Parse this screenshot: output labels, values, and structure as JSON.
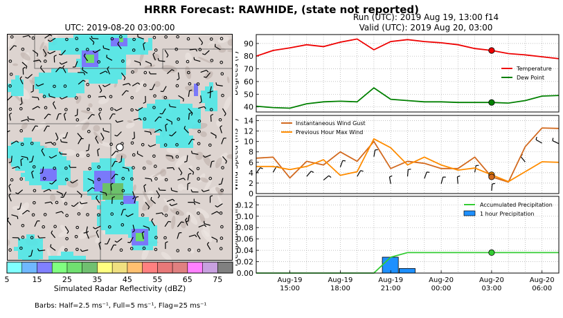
{
  "title": "HRRR Forecast: RAWHIDE, (state not reported)",
  "map": {
    "title": "UTC: 2019-08-20 03:00:00",
    "colorbar": {
      "label": "Simulated Radar Reflectivity (dBZ)",
      "ticks": [
        "5",
        "15",
        "25",
        "35",
        "45",
        "55",
        "65",
        "75"
      ],
      "colors": [
        "#80ffff",
        "#6fb8ff",
        "#8080ff",
        "#80ff80",
        "#70e070",
        "#70c070",
        "#ffff80",
        "#f0e080",
        "#ffc070",
        "#ff8080",
        "#e87878",
        "#e08080",
        "#ff80ff",
        "#c8a0e0",
        "#808080"
      ]
    },
    "barbs_note": "Barbs: Half=2.5 ms⁻¹, Full=5 ms⁻¹, Flag=25 ms⁻¹"
  },
  "run_line": "Run (UTC): 2019 Aug 19, 13:00 f14",
  "valid_line": "Valid (UTC): 2019 Aug 20, 03:00",
  "chart_data": [
    {
      "type": "line",
      "ylabel": "Degrees (F)",
      "ylim": [
        36,
        97
      ],
      "yticks": [
        40,
        50,
        60,
        70,
        80,
        90
      ],
      "grid": true,
      "legend": "right",
      "x": [
        "2019-08-19 13:00",
        "2019-08-19 14:00",
        "2019-08-19 15:00",
        "2019-08-19 16:00",
        "2019-08-19 17:00",
        "2019-08-19 18:00",
        "2019-08-19 19:00",
        "2019-08-19 20:00",
        "2019-08-19 21:00",
        "2019-08-19 22:00",
        "2019-08-19 23:00",
        "2019-08-20 00:00",
        "2019-08-20 01:00",
        "2019-08-20 02:00",
        "2019-08-20 03:00",
        "2019-08-20 04:00",
        "2019-08-20 05:00",
        "2019-08-20 06:00",
        "2019-08-20 07:00"
      ],
      "series": [
        {
          "name": "Temperature",
          "color": "#ee0000",
          "values": [
            80,
            84.5,
            86.5,
            89,
            87.5,
            91,
            93.5,
            85,
            91.5,
            93,
            91.5,
            90.5,
            89,
            86,
            84.5,
            82,
            81,
            79.5,
            78
          ]
        },
        {
          "name": "Dew Point",
          "color": "#008000",
          "values": [
            40.5,
            39.5,
            39,
            42.5,
            44,
            44.5,
            44,
            55,
            46,
            45,
            44,
            44,
            43.5,
            43.5,
            43.5,
            43,
            45,
            48.5,
            49
          ]
        }
      ],
      "markers": [
        {
          "x": "2019-08-20 03:00",
          "y": 84.5,
          "color": "#ee0000"
        },
        {
          "x": "2019-08-20 03:00",
          "y": 43.5,
          "color": "#008000"
        }
      ]
    },
    {
      "type": "line",
      "ylabel": "Wind Speed (ms⁻¹)",
      "ylim": [
        0,
        15
      ],
      "yticks": [
        0,
        2,
        4,
        6,
        8,
        10,
        12,
        14
      ],
      "grid": true,
      "legend": "top-left",
      "x": [
        "2019-08-19 13:00",
        "2019-08-19 14:00",
        "2019-08-19 15:00",
        "2019-08-19 16:00",
        "2019-08-19 17:00",
        "2019-08-19 18:00",
        "2019-08-19 19:00",
        "2019-08-19 20:00",
        "2019-08-19 21:00",
        "2019-08-19 22:00",
        "2019-08-19 23:00",
        "2019-08-20 00:00",
        "2019-08-20 01:00",
        "2019-08-20 02:00",
        "2019-08-20 03:00",
        "2019-08-20 04:00",
        "2019-08-20 05:00",
        "2019-08-20 06:00",
        "2019-08-20 07:00"
      ],
      "series": [
        {
          "name": "Instantaneous Wind Gust",
          "color": "#d2691e",
          "values": [
            6.8,
            7,
            3,
            6.2,
            5.5,
            8,
            6.2,
            10,
            4.8,
            6.2,
            5.8,
            4.8,
            4.8,
            7,
            3.2,
            2.2,
            9,
            12.6,
            12.5
          ]
        },
        {
          "name": "Previous Hour Max Wind",
          "color": "#ff8c00",
          "values": [
            5.2,
            5.2,
            4.6,
            5.2,
            6.5,
            3.5,
            4.2,
            10.5,
            8.8,
            5.5,
            7,
            5.5,
            4.5,
            4.9,
            3.6,
            2.3,
            4.2,
            6.1,
            6
          ]
        }
      ],
      "markers": [
        {
          "x": "2019-08-20 03:00",
          "y": 3.6,
          "color": "#ff8c00"
        },
        {
          "x": "2019-08-20 03:00",
          "y": 3.2,
          "color": "#d2691e"
        }
      ]
    },
    {
      "type": "bar+line",
      "ylabel": "Precipitation (in)",
      "ylim": [
        0,
        0.135
      ],
      "yticks": [
        "0.00",
        "0.02",
        "0.04",
        "0.06",
        "0.08",
        "0.10",
        "0.12"
      ],
      "grid": true,
      "legend": "top-right",
      "x": [
        "2019-08-19 13:00",
        "2019-08-19 14:00",
        "2019-08-19 15:00",
        "2019-08-19 16:00",
        "2019-08-19 17:00",
        "2019-08-19 18:00",
        "2019-08-19 19:00",
        "2019-08-19 20:00",
        "2019-08-19 21:00",
        "2019-08-19 22:00",
        "2019-08-19 23:00",
        "2019-08-20 00:00",
        "2019-08-20 01:00",
        "2019-08-20 02:00",
        "2019-08-20 03:00",
        "2019-08-20 04:00",
        "2019-08-20 05:00",
        "2019-08-20 06:00",
        "2019-08-20 07:00"
      ],
      "xtick_labels": [
        {
          "x": "2019-08-19 15:00",
          "line1": "Aug-19",
          "line2": "15:00"
        },
        {
          "x": "2019-08-19 18:00",
          "line1": "Aug-19",
          "line2": "18:00"
        },
        {
          "x": "2019-08-19 21:00",
          "line1": "Aug-19",
          "line2": "21:00"
        },
        {
          "x": "2019-08-20 00:00",
          "line1": "Aug-20",
          "line2": "00:00"
        },
        {
          "x": "2019-08-20 03:00",
          "line1": "Aug-20",
          "line2": "03:00"
        },
        {
          "x": "2019-08-20 06:00",
          "line1": "Aug-20",
          "line2": "06:00"
        }
      ],
      "series": [
        {
          "name": "Accumulated Precipitation",
          "color": "#33cc33",
          "values": [
            0,
            0,
            0,
            0,
            0,
            0,
            0,
            0,
            0.028,
            0.036,
            0.036,
            0.036,
            0.036,
            0.036,
            0.036,
            0.036,
            0.036,
            0.036,
            0.036
          ]
        },
        {
          "name": "1 hour Precipitation",
          "color": "#1e90ff",
          "kind": "bar",
          "values": [
            0,
            0,
            0,
            0,
            0,
            0,
            0,
            0,
            0.028,
            0.008,
            0,
            0,
            0,
            0,
            0,
            0,
            0,
            0,
            0
          ]
        }
      ],
      "markers": [
        {
          "x": "2019-08-20 03:00",
          "y": 0.036,
          "color": "#33cc33"
        }
      ]
    }
  ]
}
